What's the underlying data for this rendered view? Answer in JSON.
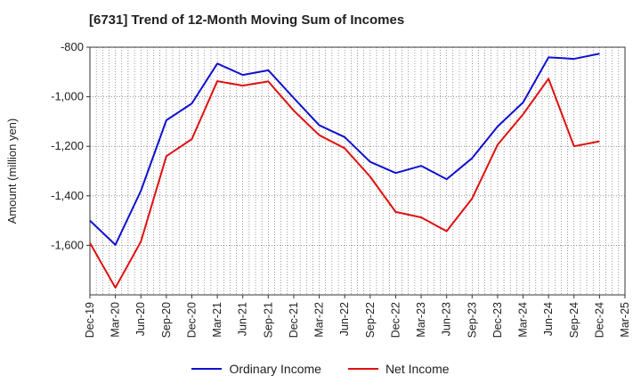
{
  "chart_data": {
    "type": "line",
    "title": "[6731]  Trend of 12-Month Moving Sum of Incomes",
    "ylabel": "Amount (million yen)",
    "xlabel": "",
    "ylim": [
      -1800,
      -800
    ],
    "yticks": [
      -800,
      -1000,
      -1200,
      -1400,
      -1600
    ],
    "ytick_labels": [
      "-800",
      "-1,000",
      "-1,200",
      "-1,400",
      "-1,600"
    ],
    "categories": [
      "Dec-19",
      "Mar-20",
      "Jun-20",
      "Sep-20",
      "Dec-20",
      "Mar-21",
      "Jun-21",
      "Sep-21",
      "Dec-21",
      "Mar-22",
      "Jun-22",
      "Sep-22",
      "Dec-22",
      "Mar-23",
      "Jun-23",
      "Sep-23",
      "Dec-23",
      "Mar-24",
      "Jun-24",
      "Sep-24",
      "Dec-24",
      "Mar-25"
    ],
    "grid": true,
    "legend_position": "bottom",
    "series": [
      {
        "name": "Ordinary Income",
        "color": "#1010d0",
        "values": [
          -1500,
          -1598,
          -1380,
          -1095,
          -1027,
          -866,
          -912,
          -893,
          -1005,
          -1115,
          -1163,
          -1263,
          -1308,
          -1279,
          -1333,
          -1248,
          -1120,
          -1023,
          -841,
          -847,
          -826,
          null
        ]
      },
      {
        "name": "Net Income",
        "color": "#e01010",
        "values": [
          -1590,
          -1771,
          -1585,
          -1240,
          -1171,
          -937,
          -955,
          -938,
          -1056,
          -1155,
          -1208,
          -1323,
          -1465,
          -1487,
          -1543,
          -1411,
          -1194,
          -1071,
          -927,
          -1200,
          -1180,
          null
        ]
      }
    ]
  }
}
